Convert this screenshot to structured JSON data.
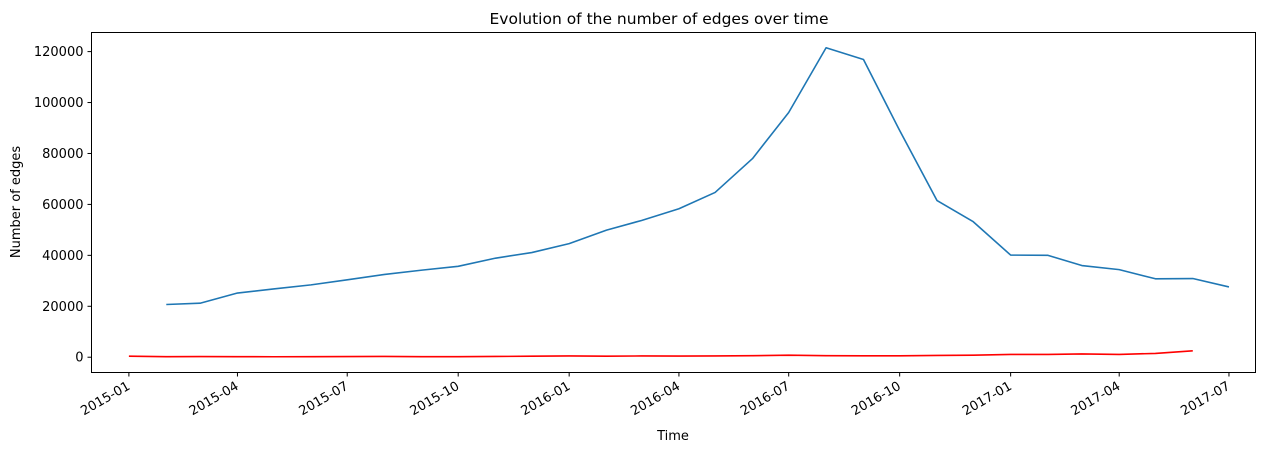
{
  "chart_data": {
    "type": "line",
    "title": "Evolution of the number of edges over time",
    "xlabel": "Time",
    "ylabel": "Number of edges",
    "xlim": [
      "2014-12-01",
      "2017-07-23"
    ],
    "ylim": [
      -6000,
      127500
    ],
    "grid": false,
    "colors": {
      "series_blue": "#1f77b4",
      "series_red": "#ff0000"
    },
    "x_ticks": [
      "2015-01",
      "2015-04",
      "2015-07",
      "2015-10",
      "2016-01",
      "2016-04",
      "2016-07",
      "2016-10",
      "2017-01",
      "2017-04",
      "2017-07"
    ],
    "y_ticks": [
      0,
      20000,
      40000,
      60000,
      80000,
      100000,
      120000
    ],
    "series": [
      {
        "color": "#1f77b4",
        "x": [
          "2015-02-01",
          "2015-03-01",
          "2015-04-01",
          "2015-05-01",
          "2015-06-01",
          "2015-07-01",
          "2015-08-01",
          "2015-09-01",
          "2015-10-01",
          "2015-11-01",
          "2015-12-01",
          "2016-01-01",
          "2016-02-01",
          "2016-03-01",
          "2016-04-01",
          "2016-05-01",
          "2016-06-01",
          "2016-07-01",
          "2016-08-01",
          "2016-09-01",
          "2016-10-01",
          "2016-11-01",
          "2016-12-01",
          "2017-01-01",
          "2017-02-01",
          "2017-03-01",
          "2017-04-01",
          "2017-05-01",
          "2017-06-01",
          "2017-07-01"
        ],
        "values": [
          20700,
          21200,
          25200,
          26800,
          28400,
          30400,
          32500,
          34200,
          35700,
          38900,
          41100,
          44600,
          49900,
          53700,
          58300,
          64700,
          78000,
          96100,
          121500,
          116900,
          89000,
          61500,
          53200,
          40100,
          40000,
          36000,
          34400,
          30800,
          30900,
          27600
        ]
      },
      {
        "color": "#ff0000",
        "x": [
          "2015-01-01",
          "2015-02-01",
          "2015-03-01",
          "2015-04-01",
          "2015-05-01",
          "2015-06-01",
          "2015-07-01",
          "2015-08-01",
          "2015-09-01",
          "2015-10-01",
          "2015-11-01",
          "2015-12-01",
          "2016-01-01",
          "2016-02-01",
          "2016-03-01",
          "2016-04-01",
          "2016-05-01",
          "2016-06-01",
          "2016-07-01",
          "2016-08-01",
          "2016-09-01",
          "2016-10-01",
          "2016-11-01",
          "2016-12-01",
          "2017-01-01",
          "2017-02-01",
          "2017-03-01",
          "2017-04-01",
          "2017-05-01",
          "2017-06-01"
        ],
        "values": [
          400,
          200,
          250,
          200,
          180,
          200,
          250,
          300,
          200,
          200,
          300,
          400,
          500,
          400,
          500,
          450,
          500,
          600,
          800,
          600,
          550,
          550,
          700,
          800,
          1100,
          1100,
          1300,
          1100,
          1500,
          2500
        ]
      }
    ]
  }
}
